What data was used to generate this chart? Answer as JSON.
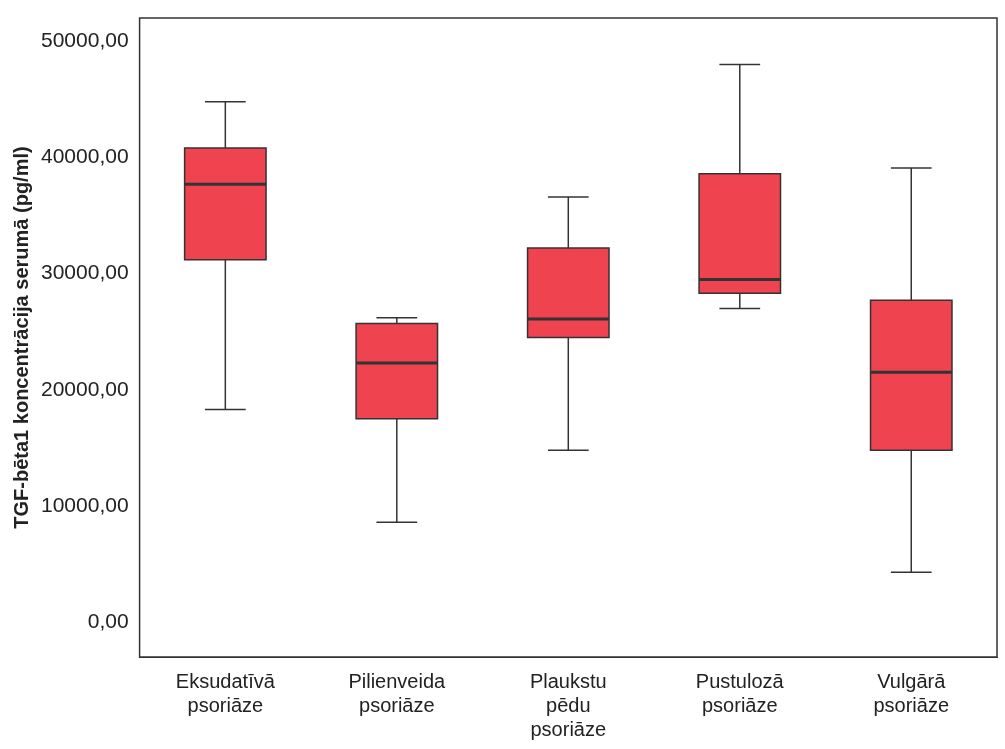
{
  "chart_data": {
    "type": "box",
    "ylabel": "TGF-bēta1 koncentrācija serumā (pg/ml)",
    "categories": [
      "Eksudatīvā psoriāze",
      "Pilienveida psoriāze",
      "Plaukstu pēdu psoriāze",
      "Pustulozā psoriāze",
      "Vulgārā psoriāze"
    ],
    "color": "#f04350",
    "boxes": [
      {
        "low": 18300,
        "q1": 31200,
        "median": 37700,
        "q3": 40800,
        "high": 44800
      },
      {
        "low": 8600,
        "q1": 17500,
        "median": 22300,
        "q3": 25700,
        "high": 26200
      },
      {
        "low": 14800,
        "q1": 24500,
        "median": 26100,
        "q3": 32200,
        "high": 36600
      },
      {
        "low": 27000,
        "q1": 28300,
        "median": 29500,
        "q3": 38600,
        "high": 48000
      },
      {
        "low": 4300,
        "q1": 14800,
        "median": 21500,
        "q3": 27700,
        "high": 39100
      }
    ],
    "ylim": [
      -3000,
      52000
    ],
    "yticks": [
      {
        "value": 0,
        "label": "0,00"
      },
      {
        "value": 10000,
        "label": "10000,00"
      },
      {
        "value": 20000,
        "label": "20000,00"
      },
      {
        "value": 30000,
        "label": "30000,00"
      },
      {
        "value": 40000,
        "label": "40000,00"
      },
      {
        "value": 50000,
        "label": "50000,00"
      }
    ],
    "grid": false,
    "legend": false
  }
}
